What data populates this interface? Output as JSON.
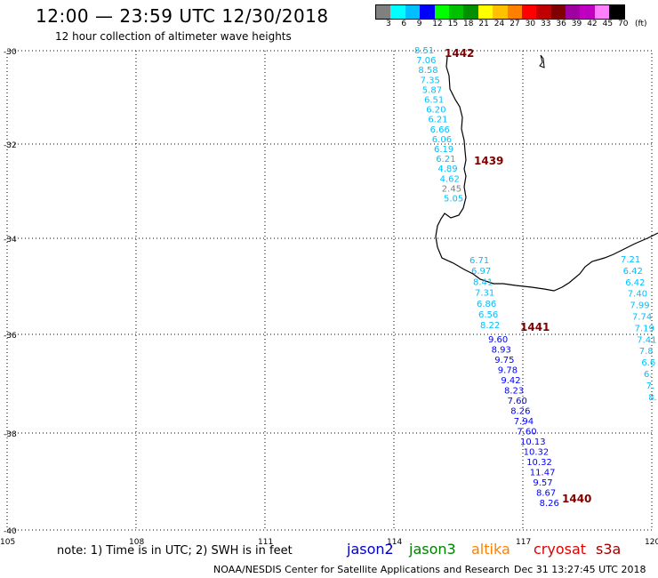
{
  "header": {
    "title": "12:00 — 23:59 UTC 12/30/2018",
    "subtitle": "12 hour collection of altimeter wave heights"
  },
  "legend": {
    "unit": "(ft)",
    "colors": [
      "#808080",
      "#00ffff",
      "#00bfff",
      "#0000ff",
      "#00ff00",
      "#00c000",
      "#009000",
      "#ffff00",
      "#ffc000",
      "#ff8000",
      "#ff0000",
      "#c00000",
      "#800000",
      "#a000a0",
      "#c000c0",
      "#ff80ff",
      "#000000"
    ],
    "labels": [
      "3",
      "6",
      "9",
      "12",
      "15",
      "18",
      "21",
      "24",
      "27",
      "30",
      "33",
      "36",
      "39",
      "42",
      "45",
      "70"
    ]
  },
  "map": {
    "lat_labels": [
      "-30",
      "-32",
      "-34",
      "-36",
      "-38",
      "-40"
    ],
    "lon_labels": [
      "105",
      "108",
      "111",
      "114",
      "117",
      "120"
    ]
  },
  "passes": [
    {
      "id": "1442",
      "color": "#00bfff",
      "values": [
        "8.51",
        "7.06",
        "8.58",
        "7.35",
        "5.87",
        "6.51",
        "6.20",
        "6.21",
        "6.66",
        "6.06",
        "6.19",
        "6.21",
        "4.89",
        "4.62",
        "2.45",
        "5.05"
      ]
    },
    {
      "id": "1441",
      "color": "#00bfff",
      "values": [
        "6.71",
        "6.97",
        "8.41",
        "7.31",
        "6.86",
        "6.56",
        "8.22"
      ]
    },
    {
      "id": "1440",
      "color": "#0000ff",
      "values": [
        "9.60",
        "8.93",
        "9.75",
        "9.78",
        "9.42",
        "8.23",
        "7.60",
        "8.26",
        "7.94",
        "7.60",
        "10.13",
        "10.32",
        "10.32",
        "11.47",
        "9.57",
        "8.67",
        "8.26"
      ]
    },
    {
      "id": "1439",
      "color": "#00bfff",
      "values": [
        "7.21",
        "6.42",
        "6.42",
        "7.40",
        "7.99",
        "7.74",
        "7.19",
        "7.41",
        "7.8",
        "6.6",
        "6.",
        "7.",
        "8."
      ]
    }
  ],
  "note": "note: 1) Time is in UTC; 2) SWH is in feet",
  "satellites": [
    {
      "name": "jason2",
      "color": "#0000c0"
    },
    {
      "name": "jason3",
      "color": "#008000"
    },
    {
      "name": "altika",
      "color": "#ff8000"
    },
    {
      "name": "cryosat",
      "color": "#e00000"
    },
    {
      "name": "s3a",
      "color": "#a00000"
    }
  ],
  "credit": "NOAA/NESDIS Center for Satellite Applications and Research",
  "credit_date": "Dec 31 13:27:45 UTC 2018"
}
